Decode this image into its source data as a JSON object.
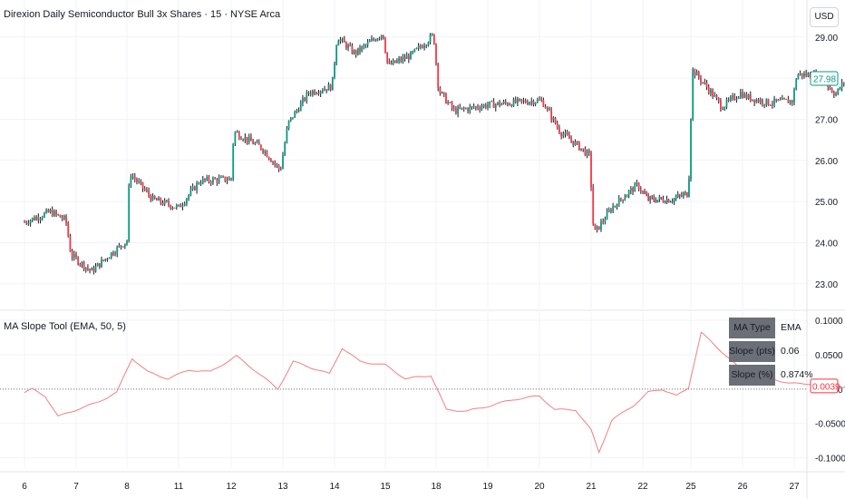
{
  "header": {
    "title": "Direxion Daily Semiconductor Bull 3x Shares · 15 · NYSE Arca",
    "currency": "USD"
  },
  "indicator": {
    "title": "MA Slope Tool (EMA, 50, 5)",
    "table": [
      {
        "key": "MA Type",
        "value": "EMA"
      },
      {
        "key": "Slope (pts)",
        "value": "0.06"
      },
      {
        "key": "Slope (%)",
        "value": "0.874%"
      }
    ]
  },
  "colors": {
    "up": "#089981",
    "down": "#f23645",
    "wick": "#131722",
    "slope_line": "#f0817e",
    "grid": "#f0f3fa",
    "zero_line": "#787b86"
  },
  "chart_data": [
    {
      "type": "candlestick",
      "title": "Direxion Daily Semiconductor Bull 3x Shares · 15 · NYSE Arca",
      "x_ticks": [
        "6",
        "7",
        "8",
        "11",
        "12",
        "13",
        "14",
        "15",
        "18",
        "19",
        "20",
        "21",
        "22",
        "25",
        "26",
        "27"
      ],
      "y_ticks": [
        "29.00",
        "28.00",
        "27.00",
        "26.00",
        "25.00",
        "24.00",
        "23.00"
      ],
      "ylim": [
        22.4,
        29.9
      ],
      "last_price": "27.98",
      "close_path": [
        {
          "t": 0.0,
          "v": 24.5
        },
        {
          "t": 0.5,
          "v": 24.75
        },
        {
          "t": 0.8,
          "v": 24.55
        },
        {
          "t": 0.9,
          "v": 23.7
        },
        {
          "t": 1.3,
          "v": 23.3
        },
        {
          "t": 1.7,
          "v": 23.75
        },
        {
          "t": 2.0,
          "v": 24.05
        },
        {
          "t": 2.05,
          "v": 25.7
        },
        {
          "t": 2.5,
          "v": 25.05
        },
        {
          "t": 3.0,
          "v": 24.85
        },
        {
          "t": 3.4,
          "v": 25.5
        },
        {
          "t": 4.0,
          "v": 25.55
        },
        {
          "t": 4.05,
          "v": 26.7
        },
        {
          "t": 4.6,
          "v": 26.3
        },
        {
          "t": 4.95,
          "v": 25.75
        },
        {
          "t": 5.1,
          "v": 26.9
        },
        {
          "t": 5.5,
          "v": 27.65
        },
        {
          "t": 5.95,
          "v": 27.8
        },
        {
          "t": 6.05,
          "v": 29.0
        },
        {
          "t": 6.4,
          "v": 28.6
        },
        {
          "t": 6.95,
          "v": 29.1
        },
        {
          "t": 7.05,
          "v": 28.3
        },
        {
          "t": 7.5,
          "v": 28.55
        },
        {
          "t": 7.95,
          "v": 29.05
        },
        {
          "t": 8.05,
          "v": 27.7
        },
        {
          "t": 8.35,
          "v": 27.2
        },
        {
          "t": 9.0,
          "v": 27.35
        },
        {
          "t": 9.9,
          "v": 27.45
        },
        {
          "t": 10.05,
          "v": 27.45
        },
        {
          "t": 10.4,
          "v": 26.7
        },
        {
          "t": 10.8,
          "v": 26.3
        },
        {
          "t": 10.97,
          "v": 26.1
        },
        {
          "t": 11.05,
          "v": 24.2
        },
        {
          "t": 11.4,
          "v": 24.85
        },
        {
          "t": 11.7,
          "v": 25.2
        },
        {
          "t": 11.9,
          "v": 25.4
        },
        {
          "t": 12.1,
          "v": 25.05
        },
        {
          "t": 12.6,
          "v": 25.05
        },
        {
          "t": 12.95,
          "v": 25.2
        },
        {
          "t": 13.03,
          "v": 28.2
        },
        {
          "t": 13.3,
          "v": 27.8
        },
        {
          "t": 13.6,
          "v": 27.3
        },
        {
          "t": 13.97,
          "v": 27.65
        },
        {
          "t": 14.05,
          "v": 27.55
        },
        {
          "t": 14.5,
          "v": 27.4
        },
        {
          "t": 14.97,
          "v": 27.45
        },
        {
          "t": 15.05,
          "v": 28.1
        },
        {
          "t": 15.5,
          "v": 28.05
        },
        {
          "t": 15.8,
          "v": 27.6
        },
        {
          "t": 16.0,
          "v": 27.98
        }
      ]
    },
    {
      "type": "line",
      "title": "MA Slope Tool (EMA, 50, 5)",
      "y_ticks": [
        "0.1000",
        "0.0500",
        "0.0000",
        "-0.0500",
        "-0.1000"
      ],
      "ylim": [
        -0.115,
        0.112
      ],
      "last_value": "0.0039",
      "series": [
        {
          "points": [
            {
              "t": 0.0,
              "v": -0.005
            },
            {
              "t": 0.15,
              "v": 0.0
            },
            {
              "t": 0.4,
              "v": -0.01
            },
            {
              "t": 0.65,
              "v": -0.04
            },
            {
              "t": 1.0,
              "v": -0.03
            },
            {
              "t": 1.4,
              "v": -0.02
            },
            {
              "t": 1.8,
              "v": -0.005
            },
            {
              "t": 2.1,
              "v": 0.045
            },
            {
              "t": 2.4,
              "v": 0.025
            },
            {
              "t": 2.8,
              "v": 0.015
            },
            {
              "t": 3.2,
              "v": 0.028
            },
            {
              "t": 3.6,
              "v": 0.025
            },
            {
              "t": 4.1,
              "v": 0.048
            },
            {
              "t": 4.5,
              "v": 0.025
            },
            {
              "t": 4.9,
              "v": 0.0
            },
            {
              "t": 5.2,
              "v": 0.04
            },
            {
              "t": 5.6,
              "v": 0.03
            },
            {
              "t": 5.9,
              "v": 0.022
            },
            {
              "t": 6.15,
              "v": 0.06
            },
            {
              "t": 6.5,
              "v": 0.04
            },
            {
              "t": 7.0,
              "v": 0.035
            },
            {
              "t": 7.4,
              "v": 0.015
            },
            {
              "t": 7.9,
              "v": 0.02
            },
            {
              "t": 8.2,
              "v": -0.03
            },
            {
              "t": 8.6,
              "v": -0.032
            },
            {
              "t": 9.0,
              "v": -0.025
            },
            {
              "t": 9.5,
              "v": -0.015
            },
            {
              "t": 10.0,
              "v": -0.01
            },
            {
              "t": 10.3,
              "v": -0.03
            },
            {
              "t": 10.7,
              "v": -0.03
            },
            {
              "t": 11.0,
              "v": -0.06
            },
            {
              "t": 11.15,
              "v": -0.092
            },
            {
              "t": 11.4,
              "v": -0.045
            },
            {
              "t": 11.8,
              "v": -0.025
            },
            {
              "t": 12.1,
              "v": -0.005
            },
            {
              "t": 12.4,
              "v": 0.0
            },
            {
              "t": 12.7,
              "v": -0.01
            },
            {
              "t": 12.95,
              "v": 0.002
            },
            {
              "t": 13.2,
              "v": 0.082
            },
            {
              "t": 13.45,
              "v": 0.065
            },
            {
              "t": 13.8,
              "v": 0.04
            },
            {
              "t": 14.2,
              "v": 0.012
            },
            {
              "t": 14.6,
              "v": 0.015
            },
            {
              "t": 14.9,
              "v": 0.008
            },
            {
              "t": 15.3,
              "v": 0.008
            },
            {
              "t": 15.7,
              "v": -0.002
            },
            {
              "t": 16.0,
              "v": 0.0039
            }
          ]
        }
      ]
    }
  ]
}
